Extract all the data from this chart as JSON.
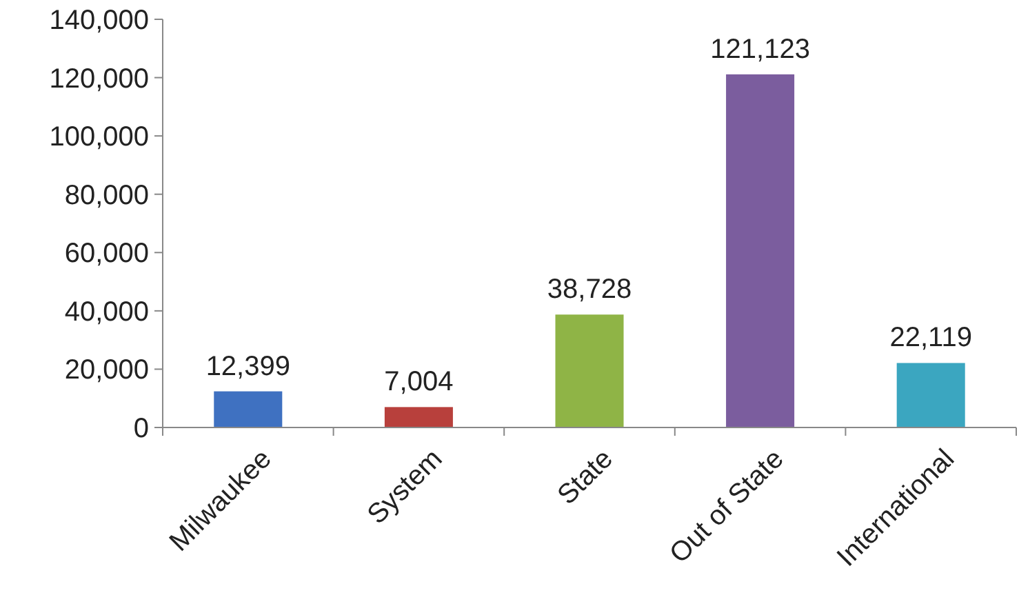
{
  "chart_data": {
    "type": "bar",
    "categories": [
      "Milwaukee",
      "System",
      "State",
      "Out of State",
      "International"
    ],
    "values": [
      12399,
      7004,
      38728,
      121123,
      22119
    ],
    "colors": [
      "#3f71c1",
      "#b8403c",
      "#8fb446",
      "#7b5d9e",
      "#3ba6c0"
    ],
    "value_labels": [
      "12,399",
      "7,004",
      "38,728",
      "121,123",
      "22,119"
    ],
    "ylim": [
      0,
      140000
    ],
    "yticks": [
      0,
      {
        "value": 20000,
        "label": "20,000"
      },
      {
        "value": 40000,
        "label": "40,000"
      },
      {
        "value": 60000,
        "label": "60,000"
      },
      {
        "value": 80000,
        "label": "80,000"
      },
      {
        "value": 100000,
        "label": "100,000"
      },
      {
        "value": 120000,
        "label": "120,000"
      },
      {
        "value": 140000,
        "label": "140,000"
      }
    ],
    "grid": false
  }
}
